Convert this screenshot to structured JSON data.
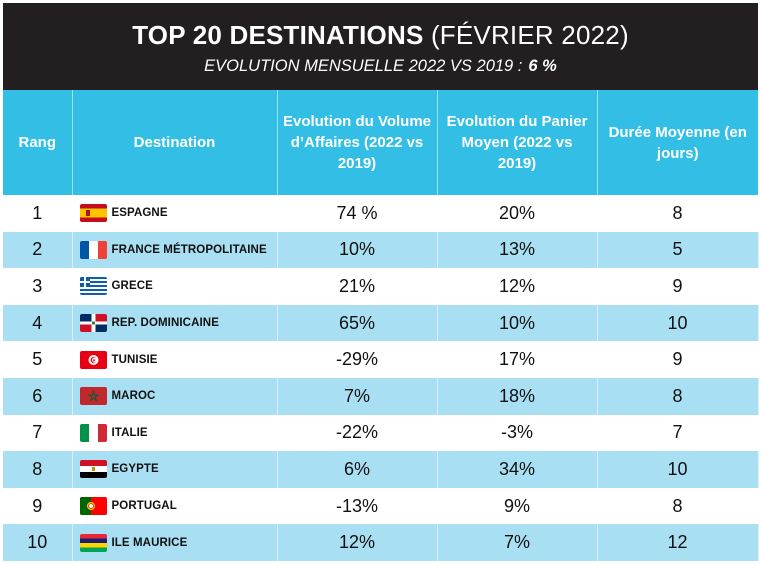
{
  "header": {
    "title_bold": "TOP 20 DESTINATIONS",
    "title_rest": "(FÉVRIER 2022)",
    "subtitle_label": "EVOLUTION MENSUELLE 2022 VS 2019 :",
    "subtitle_value": "6 %"
  },
  "table": {
    "columns": [
      "Rang",
      "Destination",
      "Evolution du Volume d’Affaires (2022 vs 2019)",
      "Evolution du Panier Moyen (2022 vs 2019)",
      "Durée Moyenne (en jours)"
    ],
    "rows": [
      {
        "rang": "1",
        "destination": "ESPAGNE",
        "flag": "spain-flag-icon",
        "volume": "74 %",
        "panier": "20%",
        "duree": "8"
      },
      {
        "rang": "2",
        "destination": "FRANCE MÉTROPOLITAINE",
        "flag": "france-flag-icon",
        "volume": "10%",
        "panier": "13%",
        "duree": "5"
      },
      {
        "rang": "3",
        "destination": "GRECE",
        "flag": "greece-flag-icon",
        "volume": "21%",
        "panier": "12%",
        "duree": "9"
      },
      {
        "rang": "4",
        "destination": "REP. DOMINICAINE",
        "flag": "dominican-republic-flag-icon",
        "volume": "65%",
        "panier": "10%",
        "duree": "10"
      },
      {
        "rang": "5",
        "destination": "TUNISIE",
        "flag": "tunisia-flag-icon",
        "volume": "-29%",
        "panier": "17%",
        "duree": "9"
      },
      {
        "rang": "6",
        "destination": "MAROC",
        "flag": "morocco-flag-icon",
        "volume": "7%",
        "panier": "18%",
        "duree": "8"
      },
      {
        "rang": "7",
        "destination": "ITALIE",
        "flag": "italy-flag-icon",
        "volume": "-22%",
        "panier": "-3%",
        "duree": "7"
      },
      {
        "rang": "8",
        "destination": "EGYPTE",
        "flag": "egypt-flag-icon",
        "volume": "6%",
        "panier": "34%",
        "duree": "10"
      },
      {
        "rang": "9",
        "destination": "PORTUGAL",
        "flag": "portugal-flag-icon",
        "volume": "-13%",
        "panier": "9%",
        "duree": "8"
      },
      {
        "rang": "10",
        "destination": "ILE MAURICE",
        "flag": "mauritius-flag-icon",
        "volume": "12%",
        "panier": "7%",
        "duree": "12"
      }
    ]
  },
  "colors": {
    "header_bg": "#231f20",
    "table_header_bg": "#33bfe5",
    "alt_row_bg": "#a9dff2"
  }
}
